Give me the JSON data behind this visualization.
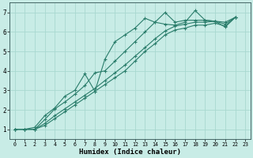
{
  "title": "",
  "xlabel": "Humidex (Indice chaleur)",
  "ylabel": "",
  "background_color": "#c8ece6",
  "grid_color": "#a8d8d0",
  "line_color": "#2a7d6b",
  "xlim": [
    -0.5,
    23.5
  ],
  "ylim": [
    0.5,
    7.5
  ],
  "xticks": [
    0,
    1,
    2,
    3,
    4,
    5,
    6,
    7,
    8,
    9,
    10,
    11,
    12,
    13,
    14,
    15,
    16,
    17,
    18,
    19,
    20,
    21,
    22,
    23
  ],
  "yticks": [
    1,
    2,
    3,
    4,
    5,
    6,
    7
  ],
  "series": [
    [
      1.0,
      1.0,
      1.1,
      1.7,
      2.1,
      2.7,
      3.0,
      3.85,
      2.95,
      4.6,
      5.5,
      5.85,
      6.2,
      6.7,
      6.5,
      6.4,
      6.35,
      6.5,
      7.1,
      6.6,
      6.55,
      6.25,
      6.75
    ],
    [
      1.0,
      1.0,
      1.0,
      1.5,
      2.05,
      2.4,
      2.8,
      3.25,
      3.9,
      4.0,
      4.5,
      5.0,
      5.5,
      6.0,
      6.5,
      7.0,
      6.5,
      6.6,
      6.6,
      6.6,
      6.55,
      6.5,
      6.75
    ],
    [
      1.0,
      1.0,
      1.0,
      1.3,
      1.7,
      2.05,
      2.4,
      2.75,
      3.1,
      3.5,
      3.9,
      4.3,
      4.75,
      5.2,
      5.65,
      6.05,
      6.3,
      6.4,
      6.5,
      6.5,
      6.55,
      6.4,
      6.75
    ],
    [
      1.0,
      1.0,
      1.0,
      1.2,
      1.55,
      1.9,
      2.25,
      2.6,
      2.95,
      3.3,
      3.65,
      4.0,
      4.5,
      5.0,
      5.4,
      5.85,
      6.1,
      6.2,
      6.35,
      6.35,
      6.45,
      6.3,
      6.75
    ]
  ]
}
